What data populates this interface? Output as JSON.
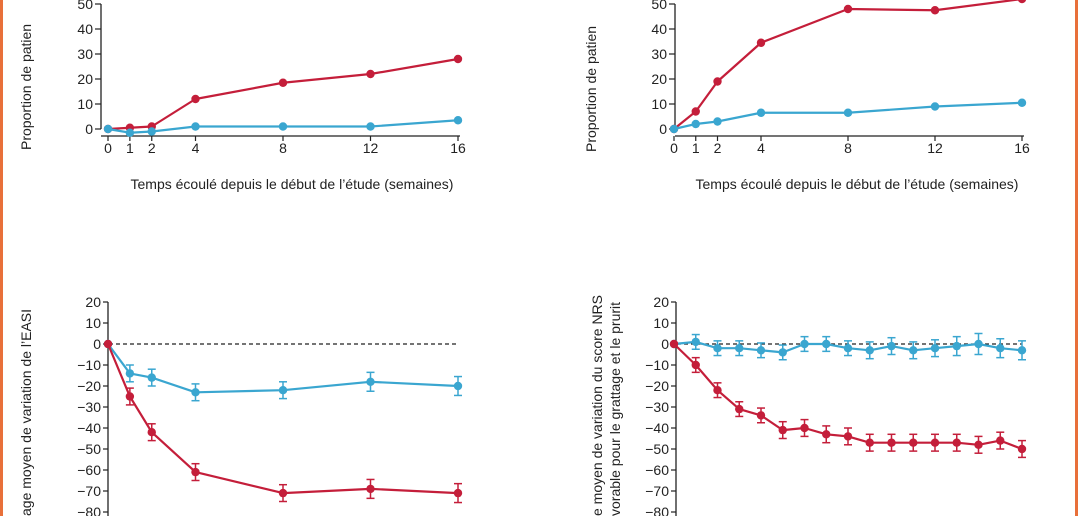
{
  "colors": {
    "red": "#c41e3a",
    "blue": "#3aa6d0",
    "axis": "#222222",
    "frame": "#e8703a"
  },
  "chart_data": [
    {
      "type": "line",
      "ylabel": "Proportion de patien",
      "xlabel": "Temps écoulé depuis le début de l’étude (semaines)",
      "x_ticks": [
        0,
        1,
        2,
        4,
        8,
        12,
        16
      ],
      "y_ticks": [
        0,
        10,
        20,
        30,
        40,
        50
      ],
      "xlim": [
        0,
        16
      ],
      "ylim": [
        0,
        50
      ],
      "series": [
        {
          "color": "#c41e3a",
          "x": [
            0,
            1,
            2,
            4,
            8,
            12,
            16
          ],
          "y": [
            0,
            0.5,
            1,
            12,
            18.5,
            22,
            28
          ]
        },
        {
          "color": "#3aa6d0",
          "x": [
            0,
            1,
            2,
            4,
            8,
            12,
            16
          ],
          "y": [
            0,
            -1.5,
            -1,
            1,
            1,
            1,
            3.5
          ]
        }
      ]
    },
    {
      "type": "line",
      "ylabel": "Proportion de patien",
      "xlabel": "Temps écoulé depuis le début de l’étude (semaines)",
      "x_ticks": [
        0,
        1,
        2,
        4,
        8,
        12,
        16
      ],
      "y_ticks": [
        0,
        10,
        20,
        30,
        40,
        50
      ],
      "xlim": [
        0,
        16
      ],
      "ylim": [
        0,
        50
      ],
      "series": [
        {
          "color": "#c41e3a",
          "x": [
            0,
            1,
            2,
            4,
            8,
            12,
            16
          ],
          "y": [
            0,
            7,
            19,
            34.5,
            48,
            47.5,
            52
          ]
        },
        {
          "color": "#3aa6d0",
          "x": [
            0,
            1,
            2,
            4,
            8,
            12,
            16
          ],
          "y": [
            0,
            2,
            3,
            6.5,
            6.5,
            9,
            10.5
          ]
        }
      ]
    },
    {
      "type": "line",
      "ylabel": "age moyen de variation de l’EASI",
      "y_ticks": [
        20,
        10,
        0,
        -10,
        -20,
        -30,
        -40,
        -50,
        -60,
        -70,
        -80
      ],
      "ylim": [
        -80,
        20
      ],
      "reference_line": 0,
      "series": [
        {
          "color": "#3aa6d0",
          "x": [
            0,
            1,
            2,
            4,
            8,
            12,
            16
          ],
          "y": [
            0,
            -14,
            -16,
            -23,
            -22,
            -18,
            -20
          ],
          "err": [
            0,
            4,
            4,
            4,
            4,
            4.5,
            4.5
          ]
        },
        {
          "color": "#c41e3a",
          "x": [
            0,
            1,
            2,
            4,
            8,
            12,
            16
          ],
          "y": [
            0,
            -25,
            -42,
            -61,
            -71,
            -69,
            -71
          ],
          "err": [
            0,
            4,
            4,
            4,
            4,
            4.5,
            4.5
          ]
        }
      ]
    },
    {
      "type": "line",
      "ylabel_lines": [
        "e moyen de variation du score NRS",
        "vorable pour le grattage et le prurit"
      ],
      "y_ticks": [
        20,
        10,
        0,
        -10,
        -20,
        -30,
        -40,
        -50,
        -60,
        -70,
        -80
      ],
      "ylim": [
        -80,
        20
      ],
      "reference_line": 0,
      "series": [
        {
          "color": "#3aa6d0",
          "x": [
            0,
            1,
            2,
            3,
            4,
            5,
            6,
            7,
            8,
            9,
            10,
            11,
            12,
            13,
            14,
            15,
            16
          ],
          "y": [
            0,
            1,
            -2,
            -2,
            -3,
            -4,
            0,
            0,
            -2,
            -3,
            -1,
            -3,
            -2,
            -1,
            0,
            -2,
            -3
          ],
          "err": [
            0,
            3.5,
            3.5,
            3.5,
            3.5,
            3.5,
            3.5,
            3.5,
            3.5,
            4,
            4,
            4,
            4,
            4.5,
            5,
            4.5,
            4.5
          ]
        },
        {
          "color": "#c41e3a",
          "x": [
            0,
            1,
            2,
            3,
            4,
            5,
            6,
            7,
            8,
            9,
            10,
            11,
            12,
            13,
            14,
            15,
            16
          ],
          "y": [
            0,
            -10,
            -22,
            -31,
            -34,
            -41,
            -40,
            -43,
            -44,
            -47,
            -47,
            -47,
            -47,
            -47,
            -48,
            -46,
            -50
          ],
          "err": [
            0,
            3.5,
            3.5,
            3.5,
            3.5,
            4,
            4,
            4,
            4,
            4,
            4,
            4,
            4,
            4,
            4,
            4,
            4
          ]
        }
      ]
    }
  ]
}
